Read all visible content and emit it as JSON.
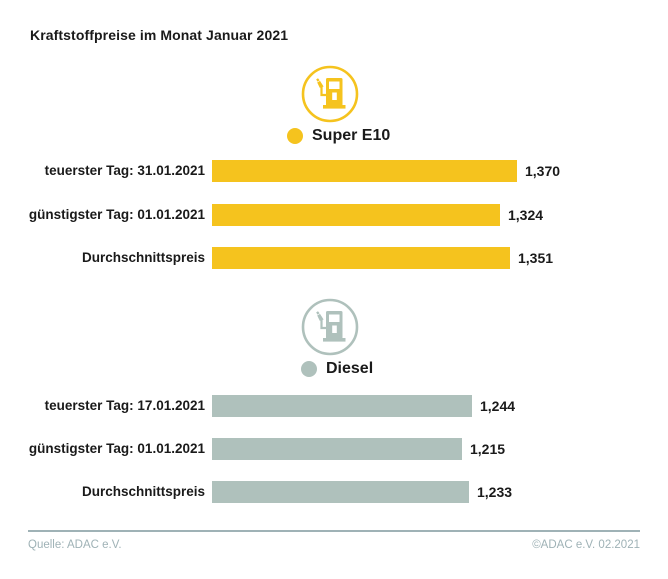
{
  "title": "Kraftstoffpreise im Monat Januar 2021",
  "colors": {
    "super_e10_yellow": "#F5C31E",
    "diesel_gray": "#AFC1BC",
    "text_black": "#1A1A1A",
    "footer_gray": "#9FB2B6"
  },
  "footer": {
    "source": "Quelle: ADAC e.V.",
    "copyright": "©ADAC e.V. 02.2021"
  },
  "chart_data": [
    {
      "type": "bar",
      "orientation": "horizontal",
      "title": "Super E10",
      "legend_label": "Super E10",
      "color": "#F5C31E",
      "icon": "fuel-pump-icon",
      "categories": [
        "teuerster Tag: 31.01.2021",
        "günstigster Tag: 01.01.2021",
        "Durchschnittspreis"
      ],
      "values": [
        1.37,
        1.324,
        1.351
      ],
      "value_labels": [
        "1,370",
        "1,324",
        "1,351"
      ]
    },
    {
      "type": "bar",
      "orientation": "horizontal",
      "title": "Diesel",
      "legend_label": "Diesel",
      "color": "#AFC1BC",
      "icon": "fuel-pump-icon",
      "categories": [
        "teuerster Tag: 17.01.2021",
        "günstigster Tag: 01.01.2021",
        "Durchschnittspreis"
      ],
      "values": [
        1.244,
        1.215,
        1.233
      ],
      "value_labels": [
        "1,244",
        "1,215",
        "1,233"
      ]
    }
  ]
}
